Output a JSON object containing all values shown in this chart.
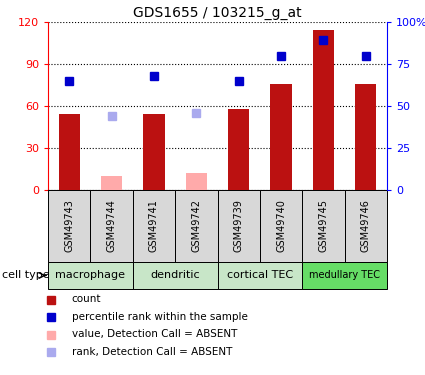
{
  "title": "GDS1655 / 103215_g_at",
  "samples": [
    "GSM49743",
    "GSM49744",
    "GSM49741",
    "GSM49742",
    "GSM49739",
    "GSM49740",
    "GSM49745",
    "GSM49746"
  ],
  "count_values": [
    54,
    0,
    54,
    0,
    58,
    76,
    114,
    76
  ],
  "count_absent": [
    false,
    true,
    false,
    true,
    false,
    false,
    false,
    false
  ],
  "rank_values": [
    65,
    0,
    68,
    0,
    65,
    80,
    89,
    80
  ],
  "rank_absent": [
    false,
    true,
    false,
    true,
    false,
    false,
    false,
    false
  ],
  "absent_count_values": [
    0,
    10,
    0,
    12,
    0,
    0,
    0,
    0
  ],
  "absent_rank_values": [
    0,
    44,
    0,
    46,
    0,
    0,
    0,
    0
  ],
  "cell_types": [
    {
      "label": "macrophage",
      "start": 0,
      "end": 2,
      "color": "#c8e6c8"
    },
    {
      "label": "dendritic",
      "start": 2,
      "end": 4,
      "color": "#c8e6c8"
    },
    {
      "label": "cortical TEC",
      "start": 4,
      "end": 6,
      "color": "#c8e6c8"
    },
    {
      "label": "medullary TEC",
      "start": 6,
      "end": 8,
      "color": "#66dd66"
    }
  ],
  "sample_box_color": "#d8d8d8",
  "left_ylim": [
    0,
    120
  ],
  "right_ylim": [
    0,
    100
  ],
  "left_yticks": [
    0,
    30,
    60,
    90,
    120
  ],
  "right_yticks": [
    0,
    25,
    50,
    75,
    100
  ],
  "right_yticklabels": [
    "0",
    "25",
    "50",
    "75",
    "100%"
  ],
  "bar_color": "#bb1111",
  "absent_bar_color": "#ffaaaa",
  "rank_color": "#0000cc",
  "absent_rank_color": "#aaaaee",
  "bar_width": 0.5,
  "figsize": [
    4.25,
    3.75
  ],
  "dpi": 100
}
